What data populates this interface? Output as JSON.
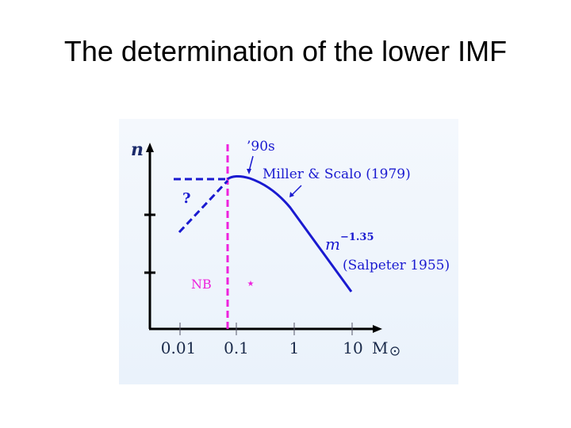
{
  "slide": {
    "title": "The determination of the lower IMF"
  },
  "diagram": {
    "y_axis_label": "n",
    "x_axis_unit": "M",
    "x_ticks": [
      "0.01",
      "0.1",
      "1",
      "10"
    ],
    "labels": {
      "nineties": "’90s",
      "miller_scalo": "Miller & Scalo (1979)",
      "salpeter_base": "m",
      "salpeter_exp": "−1.35",
      "salpeter_ref": "(Salpeter 1955)",
      "question": "?",
      "nb": "NB",
      "star": "⋆"
    },
    "colors": {
      "curve": "#1a1ad0",
      "boundary": "#ee22dd",
      "axis": "#000000",
      "text": "#1a2a6a"
    }
  }
}
